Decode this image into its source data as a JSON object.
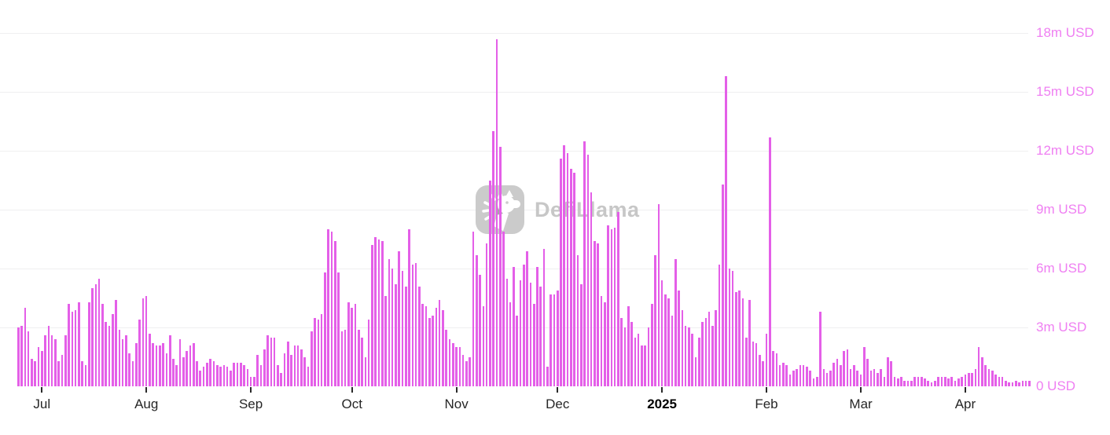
{
  "watermark": {
    "text": "DefiLlama",
    "icon": "defillama-llama-logo"
  },
  "colors": {
    "bar": "#e45fe8",
    "y_label": "#ef7ff2",
    "x_label": "#262626",
    "gridline": "#efeff0",
    "watermark_gray": "#c7c7c7",
    "logo_tile_gray": "#cbcbcb"
  },
  "chart_data": {
    "type": "bar",
    "title": "",
    "unit": "USD",
    "value_scale": "millions of USD",
    "frequency": "daily",
    "grid": "horizontal",
    "legend": "none",
    "ylim": [
      0,
      18.5
    ],
    "y_axis": {
      "side": "right",
      "ticks": [
        {
          "label": "0 USD",
          "value_m": 0
        },
        {
          "label": "3m USD",
          "value_m": 3
        },
        {
          "label": "6m USD",
          "value_m": 6
        },
        {
          "label": "9m USD",
          "value_m": 9
        },
        {
          "label": "12m USD",
          "value_m": 12
        },
        {
          "label": "15m USD",
          "value_m": 15
        },
        {
          "label": "18m USD",
          "value_m": 18
        }
      ]
    },
    "x_axis": {
      "ticks": [
        {
          "label": "Jul",
          "day_index": 7,
          "bold": false
        },
        {
          "label": "Aug",
          "day_index": 38,
          "bold": false
        },
        {
          "label": "Sep",
          "day_index": 69,
          "bold": false
        },
        {
          "label": "Oct",
          "day_index": 99,
          "bold": false
        },
        {
          "label": "Nov",
          "day_index": 130,
          "bold": false
        },
        {
          "label": "Dec",
          "day_index": 160,
          "bold": false
        },
        {
          "label": "2025",
          "day_index": 191,
          "bold": true
        },
        {
          "label": "Feb",
          "day_index": 222,
          "bold": false
        },
        {
          "label": "Mar",
          "day_index": 250,
          "bold": false
        },
        {
          "label": "Apr",
          "day_index": 281,
          "bold": false
        }
      ]
    },
    "values_m_usd": [
      3.0,
      3.1,
      4.0,
      2.8,
      1.4,
      1.3,
      2.0,
      1.8,
      2.6,
      3.1,
      2.6,
      2.4,
      1.3,
      1.6,
      2.6,
      4.2,
      3.8,
      3.9,
      4.3,
      1.3,
      1.1,
      4.3,
      5.0,
      5.2,
      5.5,
      4.2,
      3.3,
      3.1,
      3.7,
      4.4,
      2.9,
      2.4,
      2.6,
      1.7,
      1.3,
      2.2,
      3.4,
      4.5,
      4.6,
      2.7,
      2.2,
      2.1,
      2.1,
      2.2,
      1.7,
      2.6,
      1.4,
      1.1,
      2.4,
      1.5,
      1.8,
      2.1,
      2.2,
      1.3,
      0.8,
      1.0,
      1.2,
      1.4,
      1.3,
      1.1,
      1.0,
      1.1,
      1.0,
      0.8,
      1.2,
      1.2,
      1.2,
      1.1,
      0.9,
      0.5,
      0.5,
      1.6,
      1.1,
      1.9,
      2.6,
      2.5,
      2.5,
      1.1,
      0.7,
      1.7,
      2.3,
      1.6,
      2.1,
      2.1,
      1.9,
      1.5,
      1.0,
      2.8,
      3.5,
      3.4,
      3.7,
      5.8,
      8.0,
      7.9,
      7.4,
      5.8,
      2.8,
      2.9,
      4.3,
      4.0,
      4.2,
      2.9,
      2.5,
      1.5,
      3.4,
      7.2,
      7.6,
      7.5,
      7.4,
      4.6,
      6.5,
      6.0,
      5.2,
      6.9,
      5.9,
      5.1,
      8.0,
      6.2,
      6.3,
      5.1,
      4.2,
      4.1,
      3.5,
      3.6,
      4.0,
      4.4,
      3.9,
      2.9,
      2.4,
      2.2,
      2.0,
      2.0,
      1.6,
      1.3,
      1.5,
      7.9,
      6.7,
      5.7,
      4.1,
      7.3,
      10.5,
      13.0,
      17.7,
      12.2,
      7.9,
      5.5,
      4.3,
      6.1,
      3.6,
      5.4,
      6.2,
      6.9,
      5.3,
      4.2,
      6.1,
      5.1,
      7.0,
      1.0,
      4.7,
      4.7,
      4.9,
      11.6,
      12.3,
      11.9,
      11.1,
      10.9,
      6.7,
      5.2,
      12.5,
      11.8,
      9.9,
      7.4,
      7.3,
      4.6,
      4.3,
      8.2,
      8.0,
      8.1,
      8.9,
      3.5,
      3.0,
      4.1,
      3.3,
      2.5,
      2.7,
      2.1,
      2.1,
      3.0,
      4.2,
      6.7,
      9.3,
      5.4,
      4.7,
      4.5,
      3.6,
      6.5,
      4.9,
      3.9,
      3.1,
      3.0,
      2.7,
      1.5,
      2.5,
      3.3,
      3.5,
      3.8,
      3.1,
      3.9,
      6.2,
      10.3,
      15.8,
      6.0,
      5.9,
      4.8,
      4.9,
      4.5,
      2.5,
      4.4,
      2.3,
      2.2,
      1.6,
      1.3,
      2.7,
      12.7,
      1.8,
      1.7,
      1.1,
      1.2,
      1.1,
      0.6,
      0.8,
      0.9,
      1.1,
      1.1,
      1.0,
      0.8,
      0.4,
      0.5,
      3.8,
      0.9,
      0.7,
      0.8,
      1.2,
      1.4,
      1.1,
      1.8,
      1.9,
      0.9,
      1.1,
      0.8,
      0.6,
      2.0,
      1.4,
      0.8,
      0.9,
      0.7,
      0.9,
      0.5,
      1.5,
      1.3,
      0.5,
      0.4,
      0.5,
      0.3,
      0.3,
      0.3,
      0.5,
      0.5,
      0.5,
      0.4,
      0.3,
      0.2,
      0.3,
      0.5,
      0.5,
      0.5,
      0.4,
      0.5,
      0.3,
      0.4,
      0.5,
      0.6,
      0.7,
      0.7,
      0.9,
      2.0,
      1.5,
      1.1,
      0.9,
      0.8,
      0.6,
      0.5,
      0.5,
      0.3,
      0.2,
      0.2,
      0.3,
      0.2,
      0.3,
      0.3,
      0.3
    ]
  }
}
